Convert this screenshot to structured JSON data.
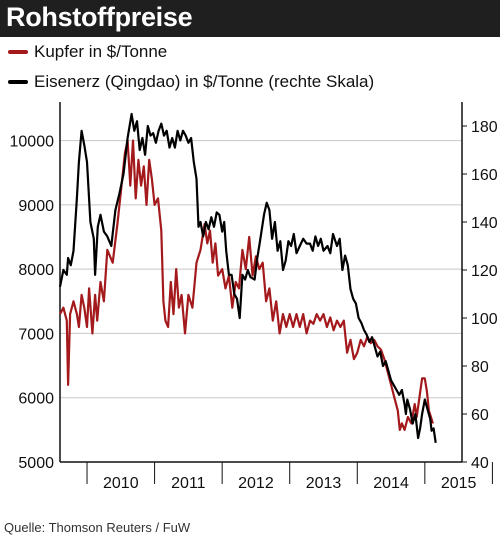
{
  "title": "Rohstoffpreise",
  "legend": [
    {
      "label": "Kupfer in $/Tonne",
      "color": "#a3191c"
    },
    {
      "label": "Eisenerz (Qingdao) in $/Tonne (rechte Skala)",
      "color": "#000000"
    }
  ],
  "source": "Quelle: Thomson Reuters / FuW",
  "chart_data": {
    "type": "line",
    "x_ticks": [
      "2010",
      "2011",
      "2012",
      "2013",
      "2014",
      "2015"
    ],
    "x_range": [
      2009.6,
      2015.55
    ],
    "y_left": {
      "min": 5000,
      "max": 10600,
      "ticks": [
        5000,
        6000,
        7000,
        8000,
        9000,
        10000
      ]
    },
    "y_right": {
      "min": 40,
      "max": 190,
      "ticks": [
        40,
        60,
        80,
        100,
        120,
        140,
        160,
        180
      ]
    },
    "grid": "horizontal",
    "series": [
      {
        "name": "Kupfer in $/Tonne",
        "axis": "left",
        "color": "#a3191c",
        "points": [
          [
            2009.6,
            7300
          ],
          [
            2009.65,
            7400
          ],
          [
            2009.7,
            7200
          ],
          [
            2009.72,
            6200
          ],
          [
            2009.75,
            7300
          ],
          [
            2009.8,
            7500
          ],
          [
            2009.85,
            7300
          ],
          [
            2009.88,
            7100
          ],
          [
            2009.92,
            7600
          ],
          [
            2009.96,
            7400
          ],
          [
            2010.0,
            7100
          ],
          [
            2010.03,
            7700
          ],
          [
            2010.08,
            7000
          ],
          [
            2010.12,
            7600
          ],
          [
            2010.15,
            7200
          ],
          [
            2010.2,
            7800
          ],
          [
            2010.25,
            7500
          ],
          [
            2010.3,
            8300
          ],
          [
            2010.38,
            8100
          ],
          [
            2010.45,
            8700
          ],
          [
            2010.52,
            9400
          ],
          [
            2010.56,
            9800
          ],
          [
            2010.6,
            10000
          ],
          [
            2010.64,
            9300
          ],
          [
            2010.68,
            10000
          ],
          [
            2010.72,
            9100
          ],
          [
            2010.76,
            9700
          ],
          [
            2010.8,
            9300
          ],
          [
            2010.84,
            9600
          ],
          [
            2010.88,
            9000
          ],
          [
            2010.92,
            9700
          ],
          [
            2010.96,
            9400
          ],
          [
            2011.0,
            9000
          ],
          [
            2011.05,
            9100
          ],
          [
            2011.1,
            8600
          ],
          [
            2011.13,
            7500
          ],
          [
            2011.16,
            7200
          ],
          [
            2011.2,
            7100
          ],
          [
            2011.24,
            7800
          ],
          [
            2011.28,
            7300
          ],
          [
            2011.32,
            8000
          ],
          [
            2011.36,
            7400
          ],
          [
            2011.4,
            7600
          ],
          [
            2011.45,
            7000
          ],
          [
            2011.5,
            7600
          ],
          [
            2011.56,
            7400
          ],
          [
            2011.62,
            8100
          ],
          [
            2011.68,
            8300
          ],
          [
            2011.74,
            8700
          ],
          [
            2011.78,
            8400
          ],
          [
            2011.82,
            8600
          ],
          [
            2011.86,
            8100
          ],
          [
            2011.9,
            8400
          ],
          [
            2011.94,
            7900
          ],
          [
            2012.0,
            8000
          ],
          [
            2012.05,
            7700
          ],
          [
            2012.1,
            7900
          ],
          [
            2012.15,
            7400
          ],
          [
            2012.2,
            7800
          ],
          [
            2012.25,
            7700
          ],
          [
            2012.3,
            8300
          ],
          [
            2012.35,
            8000
          ],
          [
            2012.4,
            8500
          ],
          [
            2012.45,
            7900
          ],
          [
            2012.5,
            8200
          ],
          [
            2012.55,
            8000
          ],
          [
            2012.6,
            8100
          ],
          [
            2012.65,
            7500
          ],
          [
            2012.7,
            7700
          ],
          [
            2012.75,
            7200
          ],
          [
            2012.8,
            7500
          ],
          [
            2012.85,
            7000
          ],
          [
            2012.9,
            7300
          ],
          [
            2012.95,
            7100
          ],
          [
            2013.0,
            7300
          ],
          [
            2013.05,
            7100
          ],
          [
            2013.1,
            7300
          ],
          [
            2013.15,
            7100
          ],
          [
            2013.2,
            7300
          ],
          [
            2013.25,
            7000
          ],
          [
            2013.3,
            7200
          ],
          [
            2013.35,
            7150
          ],
          [
            2013.4,
            7300
          ],
          [
            2013.45,
            7200
          ],
          [
            2013.5,
            7300
          ],
          [
            2013.55,
            7100
          ],
          [
            2013.6,
            7250
          ],
          [
            2013.65,
            7050
          ],
          [
            2013.7,
            7200
          ],
          [
            2013.75,
            7100
          ],
          [
            2013.8,
            7200
          ],
          [
            2013.85,
            6700
          ],
          [
            2013.9,
            6900
          ],
          [
            2013.95,
            6600
          ],
          [
            2014.0,
            6700
          ],
          [
            2014.05,
            6900
          ],
          [
            2014.1,
            6800
          ],
          [
            2014.15,
            6950
          ],
          [
            2014.2,
            6850
          ],
          [
            2014.25,
            6900
          ],
          [
            2014.3,
            6800
          ],
          [
            2014.35,
            6750
          ],
          [
            2014.4,
            6600
          ],
          [
            2014.45,
            6400
          ],
          [
            2014.5,
            6200
          ],
          [
            2014.55,
            6000
          ],
          [
            2014.6,
            5800
          ],
          [
            2014.63,
            5500
          ],
          [
            2014.66,
            5600
          ],
          [
            2014.7,
            5500
          ],
          [
            2014.75,
            5700
          ],
          [
            2014.8,
            5600
          ],
          [
            2014.85,
            5900
          ],
          [
            2014.88,
            5700
          ],
          [
            2014.92,
            6000
          ],
          [
            2014.96,
            6300
          ],
          [
            2015.0,
            6300
          ],
          [
            2015.03,
            6100
          ],
          [
            2015.06,
            5800
          ],
          [
            2015.09,
            5700
          ],
          [
            2015.12,
            5600
          ]
        ]
      },
      {
        "name": "Eisenerz (Qingdao) in $/Tonne (rechte Skala)",
        "axis": "right",
        "color": "#000000",
        "points": [
          [
            2009.6,
            113
          ],
          [
            2009.65,
            120
          ],
          [
            2009.7,
            118
          ],
          [
            2009.72,
            125
          ],
          [
            2009.76,
            122
          ],
          [
            2009.8,
            128
          ],
          [
            2009.85,
            150
          ],
          [
            2009.88,
            165
          ],
          [
            2009.92,
            178
          ],
          [
            2009.96,
            172
          ],
          [
            2010.0,
            165
          ],
          [
            2010.05,
            140
          ],
          [
            2010.1,
            133
          ],
          [
            2010.12,
            118
          ],
          [
            2010.16,
            138
          ],
          [
            2010.2,
            143
          ],
          [
            2010.25,
            136
          ],
          [
            2010.3,
            134
          ],
          [
            2010.36,
            130
          ],
          [
            2010.42,
            145
          ],
          [
            2010.48,
            152
          ],
          [
            2010.54,
            160
          ],
          [
            2010.6,
            175
          ],
          [
            2010.66,
            185
          ],
          [
            2010.7,
            178
          ],
          [
            2010.74,
            182
          ],
          [
            2010.78,
            170
          ],
          [
            2010.82,
            175
          ],
          [
            2010.86,
            168
          ],
          [
            2010.9,
            180
          ],
          [
            2010.94,
            176
          ],
          [
            2010.98,
            177
          ],
          [
            2011.02,
            173
          ],
          [
            2011.06,
            178
          ],
          [
            2011.1,
            181
          ],
          [
            2011.14,
            176
          ],
          [
            2011.18,
            178
          ],
          [
            2011.22,
            171
          ],
          [
            2011.26,
            175
          ],
          [
            2011.3,
            171
          ],
          [
            2011.34,
            178
          ],
          [
            2011.38,
            174
          ],
          [
            2011.42,
            178
          ],
          [
            2011.46,
            176
          ],
          [
            2011.5,
            173
          ],
          [
            2011.54,
            175
          ],
          [
            2011.58,
            165
          ],
          [
            2011.62,
            158
          ],
          [
            2011.65,
            138
          ],
          [
            2011.68,
            140
          ],
          [
            2011.72,
            134
          ],
          [
            2011.76,
            140
          ],
          [
            2011.8,
            137
          ],
          [
            2011.84,
            142
          ],
          [
            2011.88,
            138
          ],
          [
            2011.92,
            144
          ],
          [
            2011.96,
            143
          ],
          [
            2012.0,
            136
          ],
          [
            2012.03,
            140
          ],
          [
            2012.06,
            128
          ],
          [
            2012.1,
            118
          ],
          [
            2012.14,
            118
          ],
          [
            2012.18,
            110
          ],
          [
            2012.22,
            108
          ],
          [
            2012.26,
            100
          ],
          [
            2012.3,
            118
          ],
          [
            2012.34,
            116
          ],
          [
            2012.38,
            120
          ],
          [
            2012.42,
            117
          ],
          [
            2012.48,
            116
          ],
          [
            2012.52,
            125
          ],
          [
            2012.56,
            132
          ],
          [
            2012.62,
            143
          ],
          [
            2012.66,
            148
          ],
          [
            2012.7,
            145
          ],
          [
            2012.74,
            133
          ],
          [
            2012.78,
            140
          ],
          [
            2012.82,
            128
          ],
          [
            2012.86,
            132
          ],
          [
            2012.9,
            120
          ],
          [
            2012.94,
            124
          ],
          [
            2012.98,
            132
          ],
          [
            2013.02,
            130
          ],
          [
            2013.06,
            135
          ],
          [
            2013.1,
            127
          ],
          [
            2013.15,
            130
          ],
          [
            2013.2,
            133
          ],
          [
            2013.25,
            131
          ],
          [
            2013.3,
            131
          ],
          [
            2013.34,
            128
          ],
          [
            2013.38,
            134
          ],
          [
            2013.42,
            130
          ],
          [
            2013.46,
            133
          ],
          [
            2013.5,
            128
          ],
          [
            2013.56,
            130
          ],
          [
            2013.6,
            127
          ],
          [
            2013.64,
            135
          ],
          [
            2013.7,
            130
          ],
          [
            2013.74,
            133
          ],
          [
            2013.78,
            120
          ],
          [
            2013.82,
            126
          ],
          [
            2013.86,
            122
          ],
          [
            2013.9,
            112
          ],
          [
            2013.94,
            108
          ],
          [
            2013.98,
            106
          ],
          [
            2014.02,
            100
          ],
          [
            2014.06,
            98
          ],
          [
            2014.1,
            95
          ],
          [
            2014.14,
            93
          ],
          [
            2014.18,
            90
          ],
          [
            2014.22,
            92
          ],
          [
            2014.26,
            88
          ],
          [
            2014.3,
            84
          ],
          [
            2014.34,
            86
          ],
          [
            2014.38,
            80
          ],
          [
            2014.42,
            82
          ],
          [
            2014.46,
            78
          ],
          [
            2014.5,
            74
          ],
          [
            2014.54,
            72
          ],
          [
            2014.58,
            70
          ],
          [
            2014.62,
            68
          ],
          [
            2014.66,
            70
          ],
          [
            2014.7,
            64
          ],
          [
            2014.72,
            60
          ],
          [
            2014.74,
            66
          ],
          [
            2014.78,
            62
          ],
          [
            2014.82,
            56
          ],
          [
            2014.86,
            60
          ],
          [
            2014.9,
            50
          ],
          [
            2014.93,
            54
          ],
          [
            2014.96,
            60
          ],
          [
            2015.0,
            66
          ],
          [
            2015.04,
            62
          ],
          [
            2015.08,
            58
          ],
          [
            2015.1,
            53
          ],
          [
            2015.13,
            54
          ],
          [
            2015.16,
            48
          ]
        ]
      }
    ]
  }
}
